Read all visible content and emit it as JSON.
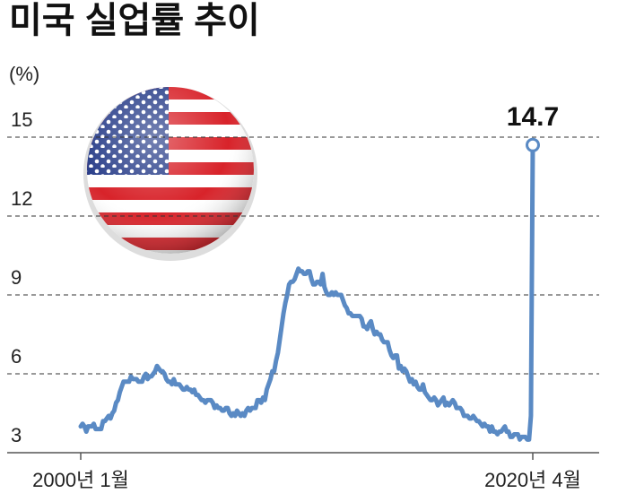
{
  "chart_data": {
    "type": "line",
    "title": "미국 실업률 추이",
    "y_label": "(%)",
    "annotation": "14.7",
    "color": "#5a8ac4",
    "grid": true,
    "ylim": [
      3,
      16.3
    ],
    "yticks": [
      3,
      6,
      9,
      12,
      15
    ],
    "categories": [
      "2000년 1월",
      null,
      null,
      null,
      null,
      null,
      null,
      null,
      null,
      null,
      null,
      null,
      null,
      null,
      null,
      null,
      null,
      null,
      null,
      null,
      null,
      null,
      null,
      null,
      null,
      null,
      null,
      null,
      null,
      null,
      null,
      null,
      null,
      null,
      null,
      null,
      null,
      null,
      null,
      null,
      null,
      null,
      null,
      null,
      null,
      null,
      null,
      null,
      null,
      null,
      null,
      null,
      null,
      null,
      null,
      null,
      null,
      null,
      null,
      null,
      null,
      null,
      null,
      null,
      null,
      null,
      null,
      null,
      null,
      null,
      null,
      null,
      null,
      null,
      null,
      null,
      null,
      null,
      null,
      null,
      null,
      null,
      null,
      null,
      null,
      null,
      null,
      null,
      null,
      null,
      null,
      null,
      null,
      null,
      null,
      null,
      null,
      null,
      null,
      null,
      null,
      null,
      null,
      null,
      null,
      null,
      null,
      null,
      null,
      null,
      null,
      null,
      null,
      null,
      null,
      null,
      null,
      null,
      null,
      null,
      null,
      null,
      null,
      null,
      null,
      null,
      null,
      null,
      null,
      null,
      null,
      null,
      null,
      null,
      null,
      null,
      null,
      null,
      null,
      null,
      null,
      null,
      null,
      null,
      null,
      null,
      null,
      null,
      null,
      null,
      null,
      null,
      null,
      null,
      null,
      null,
      null,
      null,
      null,
      null,
      null,
      null,
      null,
      null,
      null,
      null,
      null,
      null,
      null,
      null,
      null,
      null,
      null,
      null,
      null,
      null,
      null,
      null,
      null,
      null,
      null,
      null,
      null,
      null,
      null,
      null,
      null,
      null,
      null,
      null,
      null,
      null,
      null,
      null,
      null,
      null,
      null,
      null,
      null,
      null,
      null,
      null,
      null,
      null,
      null,
      null,
      null,
      null,
      null,
      null,
      null,
      null,
      null,
      null,
      null,
      null,
      null,
      null,
      null,
      null,
      null,
      null,
      null,
      null,
      null,
      null,
      null,
      null,
      null,
      null,
      null,
      null,
      null,
      null,
      null,
      null,
      null,
      null,
      null,
      null,
      null,
      null,
      null,
      "2020년 4월"
    ],
    "values": [
      4.0,
      4.1,
      4.0,
      3.8,
      4.0,
      4.0,
      4.0,
      4.1,
      3.9,
      3.9,
      3.9,
      3.9,
      4.2,
      4.2,
      4.3,
      4.4,
      4.3,
      4.5,
      4.6,
      4.9,
      5.0,
      5.3,
      5.5,
      5.7,
      5.7,
      5.7,
      5.7,
      5.9,
      5.8,
      5.8,
      5.8,
      5.7,
      5.7,
      5.7,
      5.9,
      6.0,
      5.8,
      5.9,
      5.9,
      6.0,
      6.1,
      6.3,
      6.2,
      6.1,
      6.1,
      6.0,
      5.8,
      5.7,
      5.7,
      5.6,
      5.8,
      5.6,
      5.6,
      5.6,
      5.5,
      5.4,
      5.4,
      5.5,
      5.4,
      5.4,
      5.3,
      5.4,
      5.2,
      5.2,
      5.1,
      5.0,
      5.0,
      4.9,
      5.0,
      5.0,
      5.0,
      4.9,
      4.7,
      4.8,
      4.7,
      4.7,
      4.6,
      4.6,
      4.7,
      4.7,
      4.5,
      4.4,
      4.5,
      4.4,
      4.6,
      4.5,
      4.4,
      4.5,
      4.4,
      4.6,
      4.7,
      4.6,
      4.7,
      4.7,
      4.7,
      5.0,
      5.0,
      4.9,
      5.1,
      5.0,
      5.4,
      5.6,
      5.8,
      6.1,
      6.1,
      6.5,
      6.8,
      7.3,
      7.8,
      8.3,
      8.7,
      9.0,
      9.4,
      9.5,
      9.5,
      9.6,
      9.8,
      10.0,
      9.9,
      9.9,
      9.8,
      9.8,
      9.9,
      9.9,
      9.6,
      9.4,
      9.4,
      9.5,
      9.5,
      9.4,
      9.8,
      9.3,
      9.1,
      9.0,
      9.0,
      9.1,
      9.0,
      9.1,
      9.0,
      9.0,
      9.0,
      8.8,
      8.6,
      8.5,
      8.3,
      8.3,
      8.2,
      8.2,
      8.2,
      8.2,
      8.2,
      8.1,
      7.8,
      7.8,
      7.7,
      7.9,
      8.0,
      7.7,
      7.5,
      7.6,
      7.5,
      7.5,
      7.3,
      7.2,
      7.2,
      7.2,
      6.9,
      6.7,
      6.6,
      6.7,
      6.7,
      6.2,
      6.3,
      6.1,
      6.2,
      6.1,
      5.9,
      5.7,
      5.8,
      5.6,
      5.7,
      5.5,
      5.4,
      5.4,
      5.6,
      5.3,
      5.2,
      5.1,
      5.0,
      5.0,
      5.1,
      5.0,
      4.8,
      4.9,
      5.0,
      5.1,
      4.8,
      4.9,
      4.8,
      4.9,
      5.0,
      4.9,
      4.7,
      4.7,
      4.7,
      4.6,
      4.4,
      4.4,
      4.4,
      4.3,
      4.3,
      4.4,
      4.3,
      4.2,
      4.2,
      4.1,
      4.0,
      4.1,
      4.0,
      4.0,
      3.8,
      4.0,
      3.8,
      3.8,
      3.7,
      3.8,
      3.8,
      3.9,
      4.0,
      3.8,
      3.8,
      3.6,
      3.6,
      3.7,
      3.7,
      3.7,
      3.5,
      3.6,
      3.6,
      3.6,
      3.5,
      3.5,
      4.4,
      14.7
    ]
  }
}
